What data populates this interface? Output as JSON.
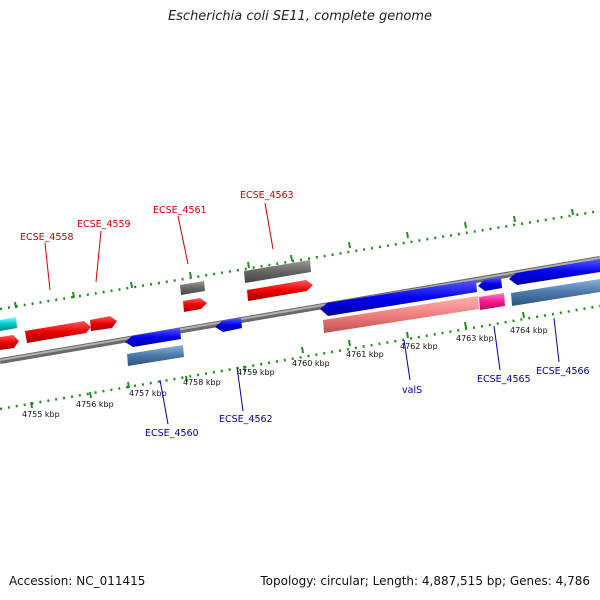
{
  "title": "Escherichia coli SE11, complete genome",
  "footer": {
    "accession": "Accession: NC_011415",
    "summary": "Topology: circular; Length: 4,887,515 bp; Genes: 4,786"
  },
  "colors": {
    "backbone": "#8c8c8c",
    "tick": "#238c23",
    "forward_cds": "#ff0000",
    "reverse_cds": "#0000ff",
    "forward_label": "#cc0000",
    "reverse_label": "#0000aa",
    "gray_feature": "#666666",
    "steelblue_feature": "#4a78a8",
    "cyan_feature": "#00cccc",
    "pink_feature": "#f08080",
    "magenta_feature": "#ff1493"
  },
  "ticks": [
    {
      "label": "4755 kbp"
    },
    {
      "label": "4756 kbp"
    },
    {
      "label": "4757 kbp"
    },
    {
      "label": "4758 kbp"
    },
    {
      "label": "4759 kbp"
    },
    {
      "label": "4760 kbp"
    },
    {
      "label": "4761 kbp"
    },
    {
      "label": "4762 kbp"
    },
    {
      "label": "4763 kbp"
    },
    {
      "label": "4764 kbp"
    }
  ],
  "gene_labels": {
    "top": [
      "ECSE_4558",
      "ECSE_4559",
      "ECSE_4561",
      "ECSE_4563"
    ],
    "bottom": [
      "ECSE_4560",
      "ECSE_4562",
      "valS",
      "ECSE_4565",
      "ECSE_4566"
    ]
  }
}
